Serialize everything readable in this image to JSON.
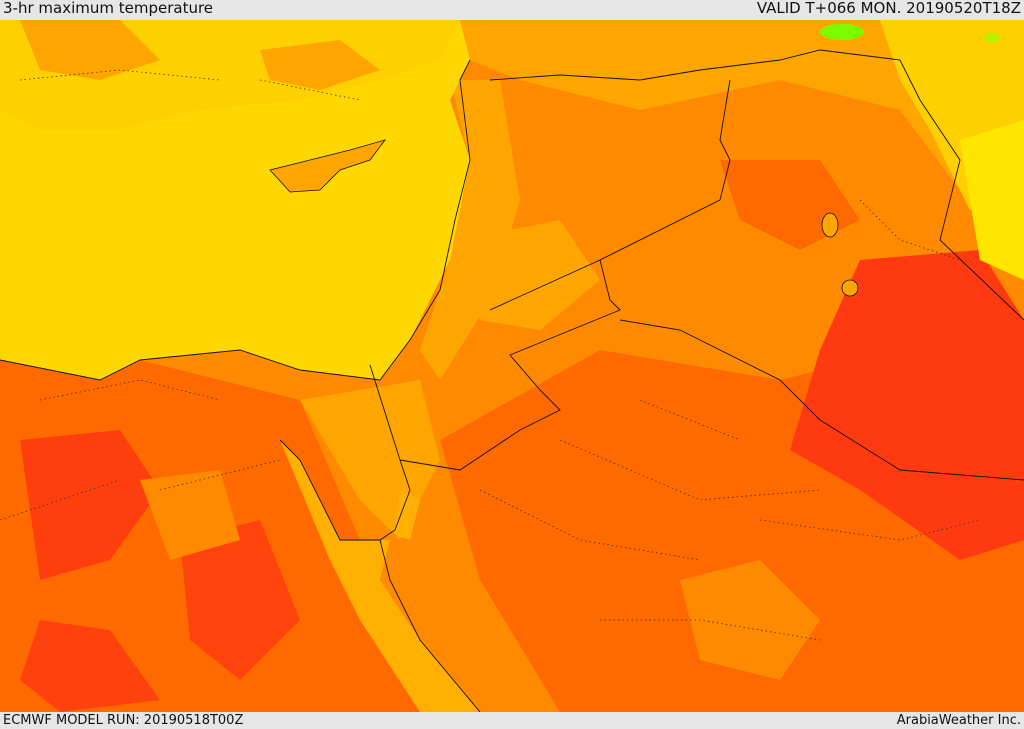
{
  "header": {
    "title": "3-hr maximum temperature",
    "valid": "VALID T+066 MON. 20190520T18Z"
  },
  "footer": {
    "model_run": "ECMWF MODEL RUN: 20190518T00Z",
    "credit": "ArabiaWeather Inc."
  },
  "colors": {
    "sea": "#ffd700",
    "cool_land": "#ffd000",
    "warm": "#ffa500",
    "hot": "#ff8a00",
    "hotter": "#ff6a00",
    "hottest": "#ff3a10",
    "green_spot": "#7cfc00",
    "border": "#111111"
  }
}
